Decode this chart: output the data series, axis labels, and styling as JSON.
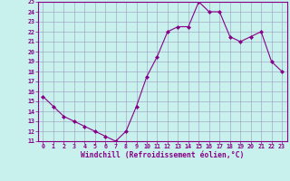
{
  "x": [
    0,
    1,
    2,
    3,
    4,
    5,
    6,
    7,
    8,
    9,
    10,
    11,
    12,
    13,
    14,
    15,
    16,
    17,
    18,
    19,
    20,
    21,
    22,
    23
  ],
  "y": [
    15.5,
    14.5,
    13.5,
    13.0,
    12.5,
    12.0,
    11.5,
    11.0,
    12.0,
    14.5,
    17.5,
    19.5,
    22.0,
    22.5,
    22.5,
    25.0,
    24.0,
    24.0,
    21.5,
    21.0,
    21.5,
    22.0,
    19.0,
    18.0
  ],
  "xlabel": "Windchill (Refroidissement éolien,°C)",
  "ylim": [
    11,
    25
  ],
  "xlim": [
    -0.5,
    23.5
  ],
  "yticks": [
    11,
    12,
    13,
    14,
    15,
    16,
    17,
    18,
    19,
    20,
    21,
    22,
    23,
    24,
    25
  ],
  "xticks": [
    0,
    1,
    2,
    3,
    4,
    5,
    6,
    7,
    8,
    9,
    10,
    11,
    12,
    13,
    14,
    15,
    16,
    17,
    18,
    19,
    20,
    21,
    22,
    23
  ],
  "line_color": "#880088",
  "marker": "D",
  "marker_size": 2.0,
  "bg_color": "#c8f0ec",
  "grid_color": "#9999bb",
  "axis_color": "#880088",
  "label_color": "#880088",
  "tick_color": "#880088",
  "xlabel_fontsize": 5.8,
  "tick_fontsize": 4.8
}
